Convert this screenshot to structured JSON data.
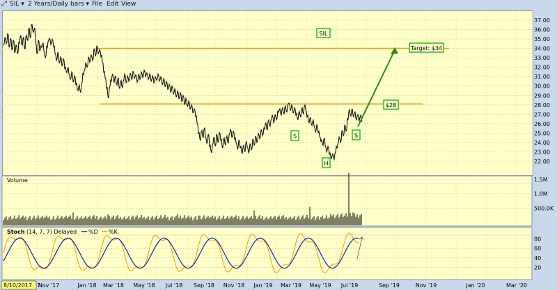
{
  "toolbar": {
    "symbol": "SIL",
    "dropdown_arrow": "▾",
    "period": "2 Years/Daily bars",
    "menus": [
      "File",
      "Edit",
      "View"
    ],
    "expand_icon": "expand-arrows-icon"
  },
  "price_panel": {
    "label": "SIL",
    "resistance_label": "$28",
    "target_label": "Target: $34",
    "pattern_labels": {
      "left_shoulder": "S",
      "head": "H",
      "right_shoulder": "S"
    },
    "y_ticks": [
      "37.00",
      "36.00",
      "35.00",
      "34.00",
      "33.00",
      "32.00",
      "31.00",
      "30.00",
      "29.00",
      "28.00",
      "27.00",
      "26.00",
      "25.00",
      "24.00",
      "23.00",
      "22.00"
    ],
    "line_color": "#e8a020",
    "arrow_color": "#2a8a10",
    "badge_color": "#20c020"
  },
  "volume_panel": {
    "label": "Volume",
    "y_ticks": [
      "1.5M",
      "1.0M",
      "500.0K"
    ]
  },
  "stoch_panel": {
    "label": "Stoch",
    "params": "(14, 7, 7) Delayed",
    "legend_d": "%D",
    "legend_k": "%K",
    "y_ticks": [
      "80",
      "60",
      "40",
      "20"
    ],
    "d_color": "#1020b0",
    "k_color": "#ff9900"
  },
  "x_axis": {
    "start_date": "8/10/2017",
    "labels": [
      "7",
      "Nov '17",
      "Jan '18",
      "Mar '18",
      "May '18",
      "Jul '18",
      "Sep '18",
      "Nov '18",
      "Jan '19",
      "Mar '19",
      "May '19",
      "Jul '19",
      "Sep '19",
      "Nov '19",
      "Jan '20",
      "Mar '20"
    ]
  },
  "chart_data": {
    "type": "line",
    "symbol": "SIL",
    "period": "2 Years/Daily bars",
    "ylim": [
      21.5,
      37.5
    ],
    "price_path": [
      [
        0,
        34.4
      ],
      [
        2,
        35.1
      ],
      [
        4,
        34.6
      ],
      [
        6,
        35.5
      ],
      [
        8,
        34.2
      ],
      [
        10,
        35.0
      ],
      [
        12,
        33.9
      ],
      [
        14,
        34.8
      ],
      [
        16,
        33.6
      ],
      [
        18,
        34.3
      ],
      [
        20,
        33.5
      ],
      [
        22,
        34.6
      ],
      [
        24,
        35.3
      ],
      [
        26,
        34.4
      ],
      [
        28,
        35.1
      ],
      [
        30,
        34.0
      ],
      [
        32,
        35.3
      ],
      [
        34,
        34.9
      ],
      [
        36,
        36.1
      ],
      [
        38,
        35.2
      ],
      [
        40,
        36.5
      ],
      [
        42,
        35.8
      ],
      [
        44,
        36.1
      ],
      [
        46,
        34.5
      ],
      [
        48,
        33.5
      ],
      [
        50,
        34.8
      ],
      [
        52,
        33.8
      ],
      [
        54,
        34.2
      ],
      [
        56,
        34.5
      ],
      [
        58,
        33.6
      ],
      [
        60,
        33.1
      ],
      [
        62,
        34.2
      ],
      [
        64,
        34.8
      ],
      [
        66,
        35.0
      ],
      [
        68,
        34.5
      ],
      [
        70,
        34.9
      ],
      [
        72,
        34.2
      ],
      [
        74,
        33.4
      ],
      [
        76,
        32.8
      ],
      [
        78,
        33.5
      ],
      [
        80,
        32.5
      ],
      [
        82,
        33.0
      ],
      [
        84,
        32.2
      ],
      [
        86,
        32.8
      ],
      [
        88,
        31.9
      ],
      [
        90,
        31.5
      ],
      [
        92,
        31.9
      ],
      [
        94,
        31.2
      ],
      [
        96,
        30.8
      ],
      [
        98,
        31.4
      ],
      [
        100,
        30.5
      ],
      [
        102,
        31.0
      ],
      [
        104,
        30.2
      ],
      [
        106,
        29.6
      ],
      [
        108,
        30.0
      ],
      [
        110,
        29.4
      ],
      [
        112,
        30.3
      ],
      [
        114,
        31.3
      ],
      [
        116,
        31.7
      ],
      [
        118,
        32.4
      ],
      [
        120,
        32.1
      ],
      [
        122,
        33.0
      ],
      [
        124,
        32.6
      ],
      [
        126,
        33.2
      ],
      [
        128,
        32.8
      ],
      [
        130,
        33.9
      ],
      [
        132,
        33.3
      ],
      [
        134,
        34.2
      ],
      [
        136,
        33.5
      ],
      [
        138,
        33.8
      ],
      [
        140,
        33.2
      ],
      [
        142,
        32.5
      ],
      [
        144,
        31.5
      ],
      [
        146,
        30.8
      ],
      [
        148,
        29.8
      ],
      [
        150,
        28.8
      ],
      [
        152,
        29.9
      ],
      [
        154,
        30.6
      ],
      [
        156,
        31.2
      ],
      [
        158,
        30.5
      ],
      [
        160,
        31.0
      ],
      [
        162,
        30.2
      ],
      [
        164,
        30.8
      ],
      [
        166,
        29.8
      ],
      [
        168,
        30.5
      ],
      [
        170,
        29.9
      ],
      [
        172,
        30.6
      ],
      [
        174,
        31.2
      ],
      [
        176,
        30.4
      ],
      [
        178,
        31.0
      ],
      [
        180,
        30.6
      ],
      [
        182,
        31.3
      ],
      [
        184,
        30.8
      ],
      [
        186,
        31.5
      ],
      [
        188,
        30.9
      ],
      [
        190,
        31.1
      ],
      [
        192,
        30.5
      ],
      [
        194,
        31.2
      ],
      [
        196,
        30.8
      ],
      [
        198,
        31.4
      ],
      [
        200,
        31.0
      ],
      [
        202,
        31.6
      ],
      [
        204,
        31.1
      ],
      [
        206,
        31.3
      ],
      [
        208,
        30.8
      ],
      [
        210,
        31.2
      ],
      [
        212,
        30.6
      ],
      [
        214,
        31.0
      ],
      [
        216,
        30.4
      ],
      [
        218,
        30.9
      ],
      [
        220,
        30.7
      ],
      [
        222,
        31.2
      ],
      [
        224,
        30.6
      ],
      [
        226,
        30.9
      ],
      [
        228,
        30.2
      ],
      [
        230,
        30.7
      ],
      [
        232,
        30.0
      ],
      [
        234,
        30.4
      ],
      [
        236,
        29.7
      ],
      [
        238,
        30.1
      ],
      [
        240,
        29.4
      ],
      [
        242,
        29.9
      ],
      [
        244,
        29.2
      ],
      [
        246,
        29.6
      ],
      [
        248,
        28.9
      ],
      [
        250,
        29.4
      ],
      [
        252,
        28.7
      ],
      [
        254,
        29.2
      ],
      [
        256,
        28.4
      ],
      [
        258,
        28.9
      ],
      [
        260,
        28.1
      ],
      [
        262,
        28.6
      ],
      [
        264,
        27.9
      ],
      [
        266,
        28.3
      ],
      [
        268,
        27.6
      ],
      [
        270,
        27.9
      ],
      [
        272,
        27.2
      ],
      [
        274,
        27.5
      ],
      [
        276,
        26.8
      ],
      [
        278,
        26.0
      ],
      [
        280,
        25.0
      ],
      [
        282,
        24.3
      ],
      [
        284,
        25.2
      ],
      [
        286,
        24.6
      ],
      [
        288,
        25.5
      ],
      [
        290,
        24.5
      ],
      [
        292,
        24.0
      ],
      [
        294,
        24.8
      ],
      [
        296,
        23.6
      ],
      [
        298,
        23.0
      ],
      [
        300,
        23.8
      ],
      [
        302,
        24.5
      ],
      [
        304,
        23.7
      ],
      [
        306,
        24.8
      ],
      [
        308,
        24.1
      ],
      [
        310,
        25.0
      ],
      [
        312,
        24.3
      ],
      [
        314,
        23.5
      ],
      [
        316,
        24.4
      ],
      [
        318,
        23.8
      ],
      [
        320,
        24.6
      ],
      [
        322,
        24.0
      ],
      [
        324,
        24.9
      ],
      [
        326,
        25.3
      ],
      [
        328,
        24.6
      ],
      [
        330,
        25.1
      ],
      [
        332,
        24.4
      ],
      [
        334,
        23.9
      ],
      [
        336,
        23.4
      ],
      [
        338,
        24.2
      ],
      [
        340,
        23.5
      ],
      [
        342,
        22.9
      ],
      [
        344,
        23.6
      ],
      [
        346,
        23.1
      ],
      [
        348,
        24.0
      ],
      [
        350,
        23.5
      ],
      [
        352,
        23.0
      ],
      [
        354,
        23.8
      ],
      [
        356,
        23.3
      ],
      [
        358,
        24.3
      ],
      [
        360,
        23.8
      ],
      [
        362,
        24.6
      ],
      [
        364,
        24.1
      ],
      [
        366,
        24.9
      ],
      [
        368,
        24.5
      ],
      [
        370,
        25.3
      ],
      [
        372,
        24.8
      ],
      [
        374,
        25.5
      ],
      [
        376,
        26.0
      ],
      [
        378,
        25.4
      ],
      [
        380,
        26.3
      ],
      [
        382,
        25.8
      ],
      [
        384,
        26.4
      ],
      [
        386,
        26.8
      ],
      [
        388,
        26.2
      ],
      [
        390,
        26.9
      ],
      [
        392,
        26.5
      ],
      [
        394,
        27.3
      ],
      [
        396,
        27.5
      ],
      [
        398,
        27.0
      ],
      [
        400,
        27.6
      ],
      [
        402,
        27.1
      ],
      [
        404,
        27.8
      ],
      [
        406,
        27.3
      ],
      [
        408,
        28.0
      ],
      [
        410,
        28.1
      ],
      [
        412,
        27.5
      ],
      [
        414,
        27.9
      ],
      [
        416,
        27.2
      ],
      [
        418,
        27.6
      ],
      [
        420,
        27.0
      ],
      [
        422,
        26.5
      ],
      [
        424,
        27.2
      ],
      [
        426,
        26.8
      ],
      [
        428,
        27.6
      ],
      [
        430,
        27.1
      ],
      [
        432,
        27.9
      ],
      [
        434,
        27.4
      ],
      [
        436,
        26.8
      ],
      [
        438,
        26.2
      ],
      [
        440,
        26.6
      ],
      [
        442,
        25.9
      ],
      [
        444,
        26.3
      ],
      [
        446,
        25.7
      ],
      [
        448,
        25.2
      ],
      [
        450,
        25.8
      ],
      [
        452,
        25.1
      ],
      [
        454,
        24.6
      ],
      [
        456,
        24.2
      ],
      [
        458,
        23.8
      ],
      [
        460,
        24.4
      ],
      [
        462,
        23.6
      ],
      [
        464,
        23.1
      ],
      [
        466,
        23.5
      ],
      [
        468,
        22.8
      ],
      [
        470,
        22.4
      ],
      [
        472,
        22.7
      ],
      [
        474,
        22.3
      ],
      [
        476,
        22.9
      ],
      [
        478,
        23.5
      ],
      [
        480,
        23.9
      ],
      [
        482,
        24.5
      ],
      [
        484,
        24.1
      ],
      [
        486,
        25.2
      ],
      [
        488,
        24.8
      ],
      [
        490,
        25.8
      ],
      [
        492,
        25.3
      ],
      [
        494,
        26.5
      ],
      [
        496,
        27.4
      ],
      [
        498,
        26.9
      ],
      [
        500,
        27.5
      ],
      [
        502,
        26.8
      ],
      [
        504,
        27.2
      ],
      [
        506,
        26.5
      ],
      [
        508,
        26.9
      ],
      [
        510,
        26.4
      ],
      [
        512,
        26.8
      ],
      [
        514,
        26.3
      ]
    ],
    "levels": [
      {
        "value": 34.0,
        "x_start": 137,
        "x_end": 645
      },
      {
        "value": 28.1,
        "x_start": 143,
        "x_end": 607
      }
    ],
    "volume_spikes": [
      {
        "x": 100,
        "value": 0.35
      },
      {
        "x": 150,
        "value": 0.28
      },
      {
        "x": 215,
        "value": 0.22
      },
      {
        "x": 250,
        "value": 0.3
      },
      {
        "x": 280,
        "value": 0.25
      },
      {
        "x": 360,
        "value": 0.42
      },
      {
        "x": 378,
        "value": 0.2
      },
      {
        "x": 440,
        "value": 0.55
      },
      {
        "x": 470,
        "value": 0.3
      },
      {
        "x": 485,
        "value": 0.25
      },
      {
        "x": 491,
        "value": 0.45
      },
      {
        "x": 493,
        "value": 0.8
      },
      {
        "x": 496,
        "value": 1.72
      },
      {
        "x": 499,
        "value": 0.6
      },
      {
        "x": 502,
        "value": 0.35
      },
      {
        "x": 506,
        "value": 0.2
      }
    ]
  }
}
